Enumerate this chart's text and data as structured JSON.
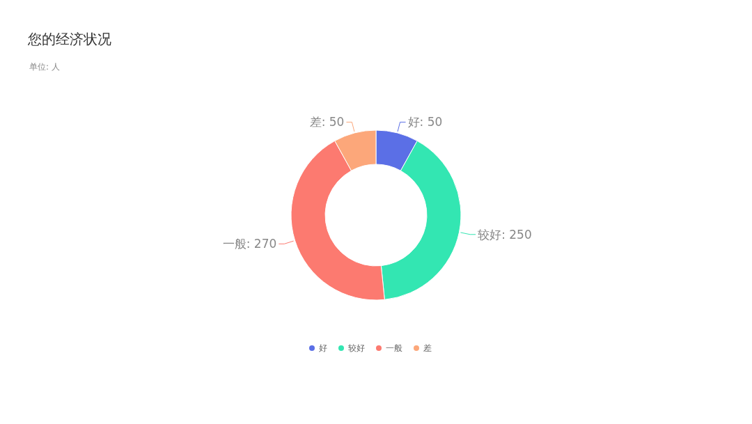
{
  "chart_data": {
    "type": "donut",
    "title": "您的经济状况",
    "subtitle": "单位: 人",
    "categories": [
      "好",
      "较好",
      "一般",
      "差"
    ],
    "values": [
      50,
      250,
      270,
      50
    ],
    "value_labels": [
      "好: 50",
      "较好: 250",
      "一般: 270",
      "差: 50"
    ],
    "colors": [
      "#5b6fe6",
      "#33e6b2",
      "#fc7a70",
      "#fca77a"
    ],
    "legend": "bottom"
  }
}
